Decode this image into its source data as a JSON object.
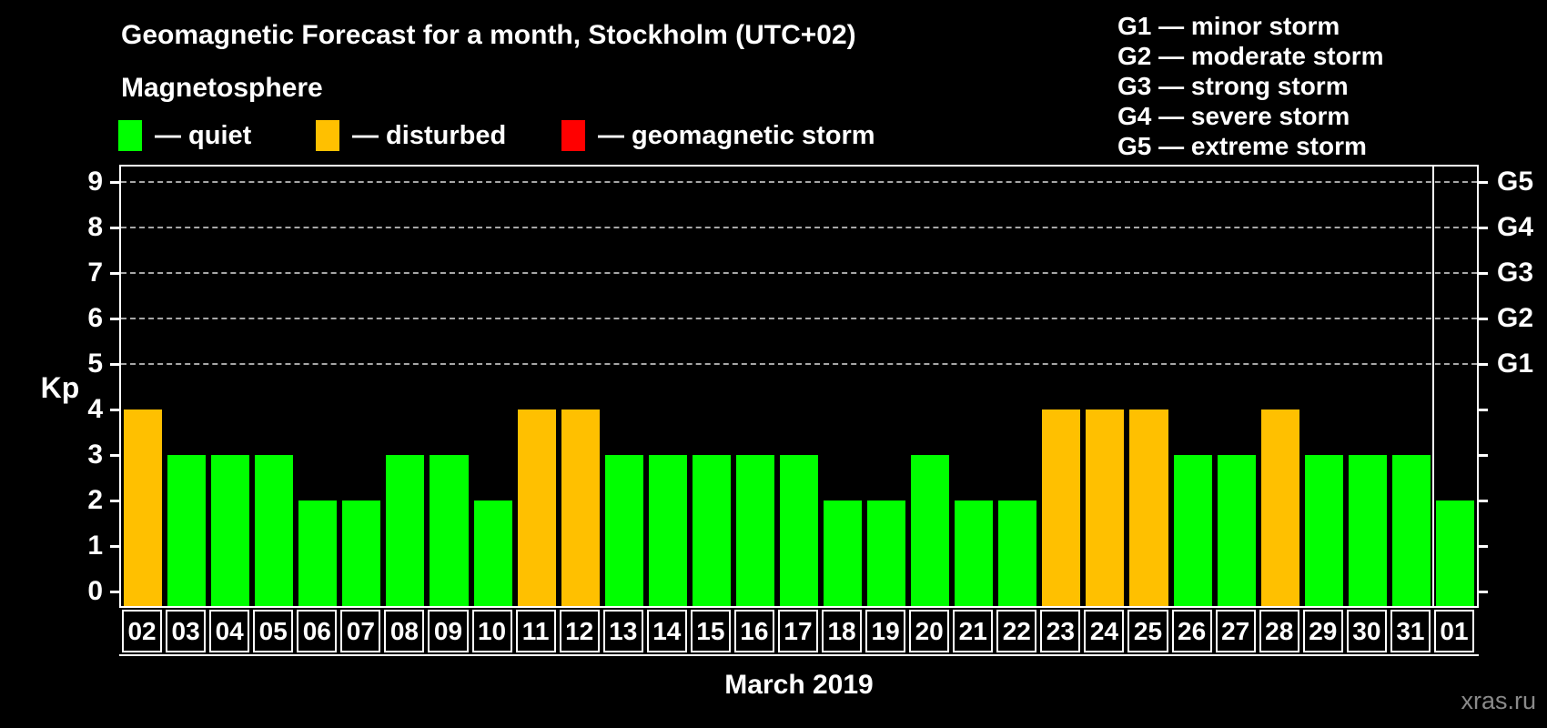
{
  "header": {
    "title": "Geomagnetic Forecast for a month, Stockholm (UTC+02)",
    "subtitle": "Magnetosphere"
  },
  "legend": {
    "items": [
      {
        "key": "quiet",
        "color": "#00FF00",
        "label": "— quiet"
      },
      {
        "key": "disturbed",
        "color": "#FFC000",
        "label": "— disturbed"
      },
      {
        "key": "storm",
        "color": "#FF0000",
        "label": "— geomagnetic storm"
      }
    ]
  },
  "storm_scale": {
    "lines": [
      "G1 — minor storm",
      "G2 — moderate storm",
      "G3 — strong storm",
      "G4 — severe storm",
      "G5 — extreme storm"
    ]
  },
  "chart_data": {
    "type": "bar",
    "title": "Geomagnetic Forecast for a month, Stockholm (UTC+02)",
    "xlabel": "March 2019",
    "ylabel": "Kp",
    "ylim": [
      0,
      9.3
    ],
    "grid": "dashed horizontal at Kp 5-9 only",
    "yticks": [
      0,
      1,
      2,
      3,
      4,
      5,
      6,
      7,
      8,
      9
    ],
    "gridline_kp": [
      5,
      6,
      7,
      8,
      9
    ],
    "right_axis": [
      {
        "kp": 5,
        "label": "G1"
      },
      {
        "kp": 6,
        "label": "G2"
      },
      {
        "kp": 7,
        "label": "G3"
      },
      {
        "kp": 8,
        "label": "G4"
      },
      {
        "kp": 9,
        "label": "G5"
      }
    ],
    "categories": [
      "02",
      "03",
      "04",
      "05",
      "06",
      "07",
      "08",
      "09",
      "10",
      "11",
      "12",
      "13",
      "14",
      "15",
      "16",
      "17",
      "18",
      "19",
      "20",
      "21",
      "22",
      "23",
      "24",
      "25",
      "26",
      "27",
      "28",
      "29",
      "30",
      "31",
      "01"
    ],
    "values": [
      4,
      3,
      3,
      3,
      2,
      2,
      3,
      3,
      2,
      4,
      4,
      3,
      3,
      3,
      3,
      3,
      2,
      2,
      3,
      2,
      2,
      4,
      4,
      4,
      3,
      3,
      4,
      3,
      3,
      3,
      2
    ],
    "statuses": [
      "disturbed",
      "quiet",
      "quiet",
      "quiet",
      "quiet",
      "quiet",
      "quiet",
      "quiet",
      "quiet",
      "disturbed",
      "disturbed",
      "quiet",
      "quiet",
      "quiet",
      "quiet",
      "quiet",
      "quiet",
      "quiet",
      "quiet",
      "quiet",
      "quiet",
      "disturbed",
      "disturbed",
      "disturbed",
      "quiet",
      "quiet",
      "disturbed",
      "quiet",
      "quiet",
      "quiet",
      "quiet"
    ],
    "colors": {
      "quiet": "#00FF00",
      "disturbed": "#FFC000",
      "storm": "#FF0000"
    },
    "month_boundary_index": 30
  },
  "footer": {
    "xaxis_title": "March 2019",
    "watermark": "xras.ru"
  }
}
